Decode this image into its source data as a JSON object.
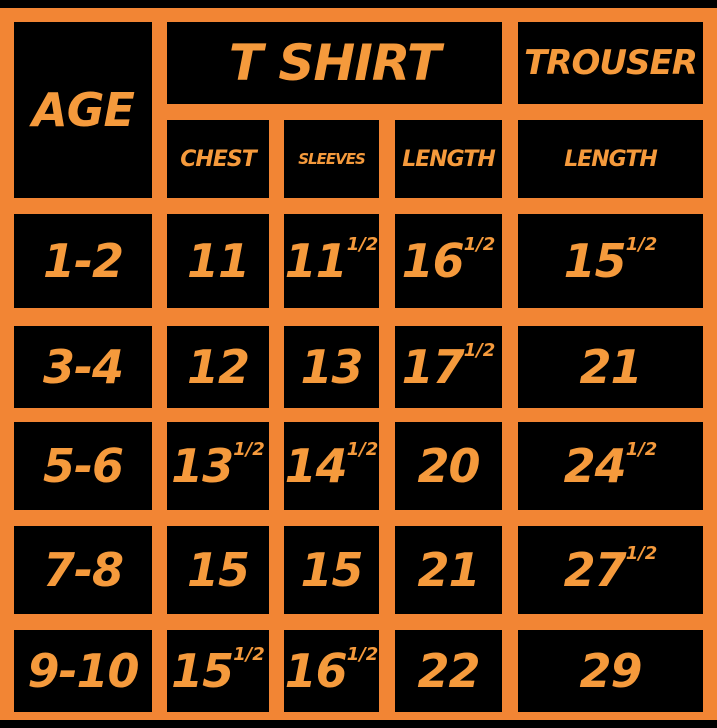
{
  "header": {
    "age": "AGE",
    "tshirt": "T SHIRT",
    "trouser": "TROUSER",
    "columns": [
      "CHEST",
      "SLEEVES",
      "LENGTH",
      "LENGTH"
    ]
  },
  "table": {
    "rows": [
      {
        "age": "1-2",
        "cells": [
          {
            "text": "11"
          },
          {
            "text": "11",
            "sup": "1/2"
          },
          {
            "text": "16",
            "sup": "1/2"
          },
          {
            "text": "15",
            "sup": "1/2"
          }
        ]
      },
      {
        "age": "3-4",
        "cells": [
          {
            "text": "12"
          },
          {
            "text": "13"
          },
          {
            "text": "17",
            "sup": "1/2"
          },
          {
            "text": "21"
          }
        ]
      },
      {
        "age": "5-6",
        "cells": [
          {
            "text": "13",
            "sup": "1/2"
          },
          {
            "text": "14",
            "sup": "1/2"
          },
          {
            "text": "20"
          },
          {
            "text": "24",
            "sup": "1/2"
          }
        ]
      },
      {
        "age": "7-8",
        "cells": [
          {
            "text": "15"
          },
          {
            "text": "15"
          },
          {
            "text": "21"
          },
          {
            "text": "27",
            "sup": "1/2"
          }
        ]
      },
      {
        "age": "9-10",
        "cells": [
          {
            "text": "15",
            "sup": "1/2"
          },
          {
            "text": "16",
            "sup": "1/2"
          },
          {
            "text": "22"
          },
          {
            "text": "29"
          }
        ]
      }
    ]
  }
}
